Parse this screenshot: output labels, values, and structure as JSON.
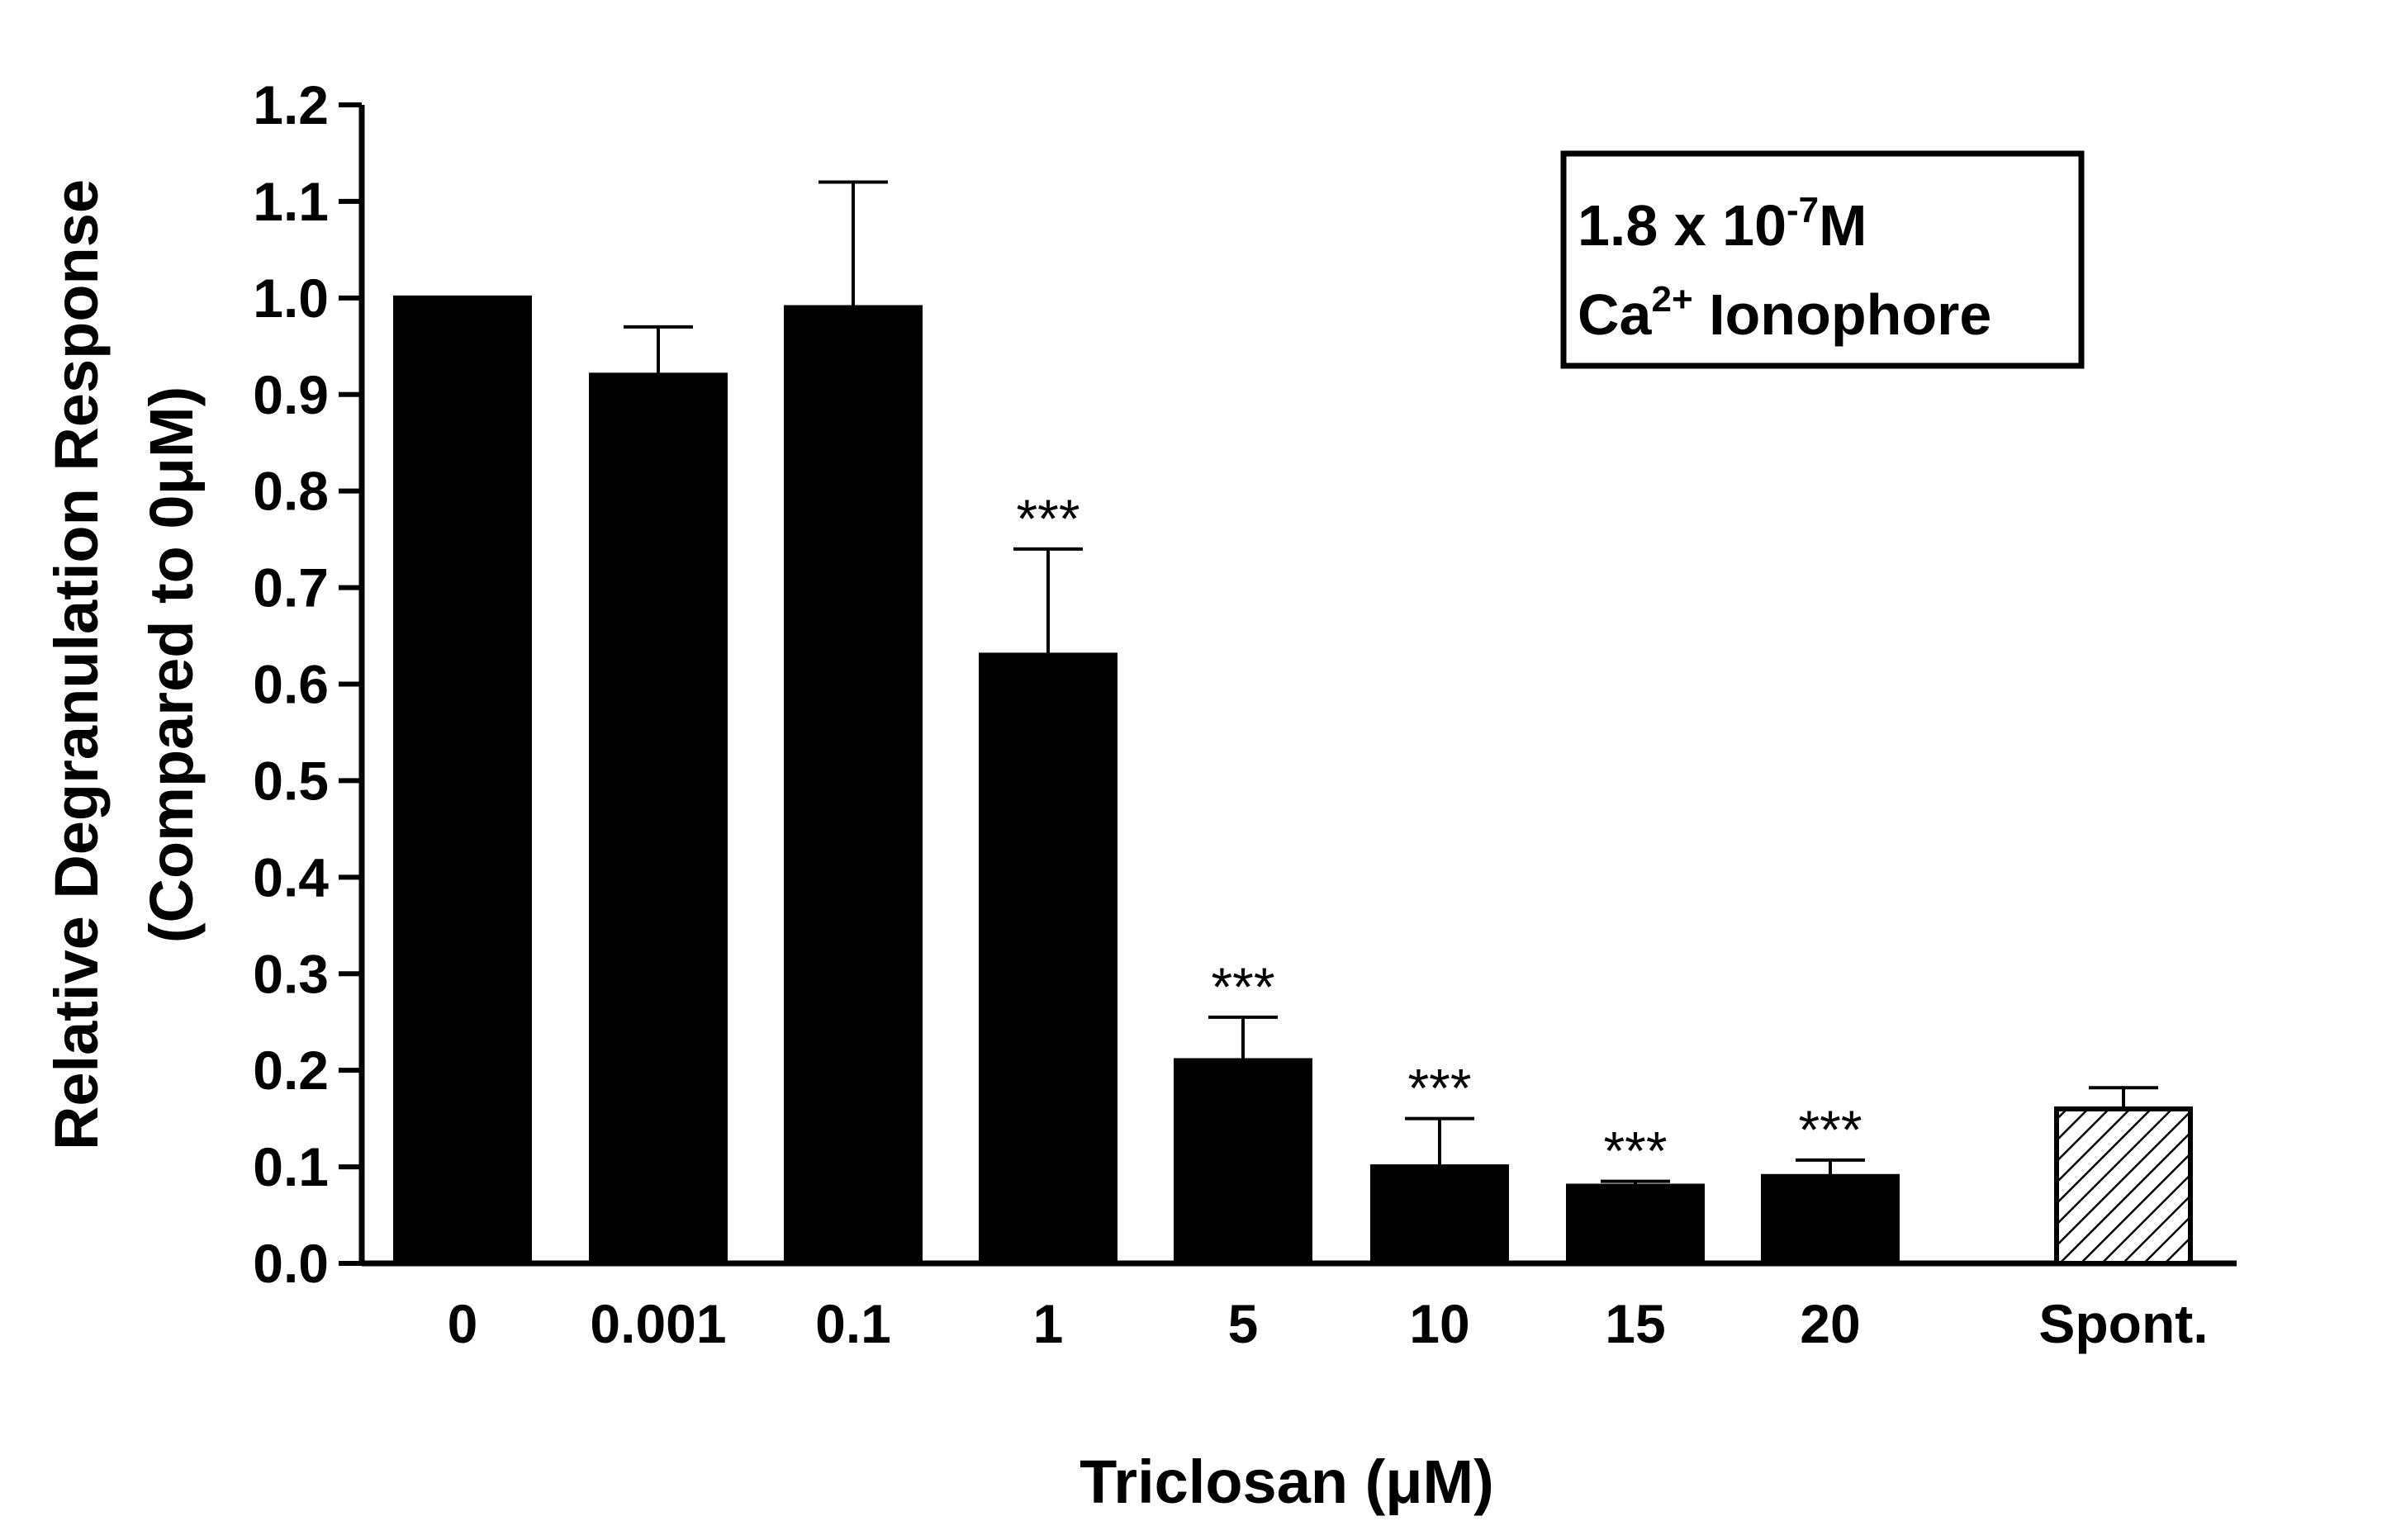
{
  "chart_data": {
    "type": "bar",
    "categories": [
      "0",
      "0.001",
      "0.1",
      "1",
      "5",
      "10",
      "15",
      "20",
      "Spont."
    ],
    "values": [
      1.0,
      0.92,
      0.99,
      0.63,
      0.21,
      0.1,
      0.08,
      0.09,
      0.16
    ],
    "errors": [
      0,
      0.05,
      0.13,
      0.11,
      0.045,
      0.05,
      0.005,
      0.017,
      0.022
    ],
    "significance": [
      "",
      "",
      "",
      "***",
      "***",
      "***",
      "***",
      "***",
      ""
    ],
    "bar_styles": [
      "solid",
      "solid",
      "solid",
      "solid",
      "solid",
      "solid",
      "solid",
      "solid",
      "hatched"
    ],
    "xlabel": "Triclosan (μM)",
    "ylabel_line1": "Relative  Degranulation  Response",
    "ylabel_line2": "(Compared to 0μM)",
    "ylim": [
      0.0,
      1.2
    ],
    "yticks": [
      "0.0",
      "0.1",
      "0.2",
      "0.3",
      "0.4",
      "0.5",
      "0.6",
      "0.7",
      "0.8",
      "0.9",
      "1.0",
      "1.1",
      "1.2"
    ],
    "grid": false,
    "legend_position": "top-right",
    "annotation": {
      "line1_base": "1.8 x 10",
      "line1_sup": "-7",
      "line1_end": "M",
      "line2_base": "Ca",
      "line2_sup": "2+",
      "line2_end": " Ionophore"
    },
    "colors": {
      "bar": "#000000",
      "hatched_fill": "#ffffff",
      "axis": "#000000"
    }
  }
}
